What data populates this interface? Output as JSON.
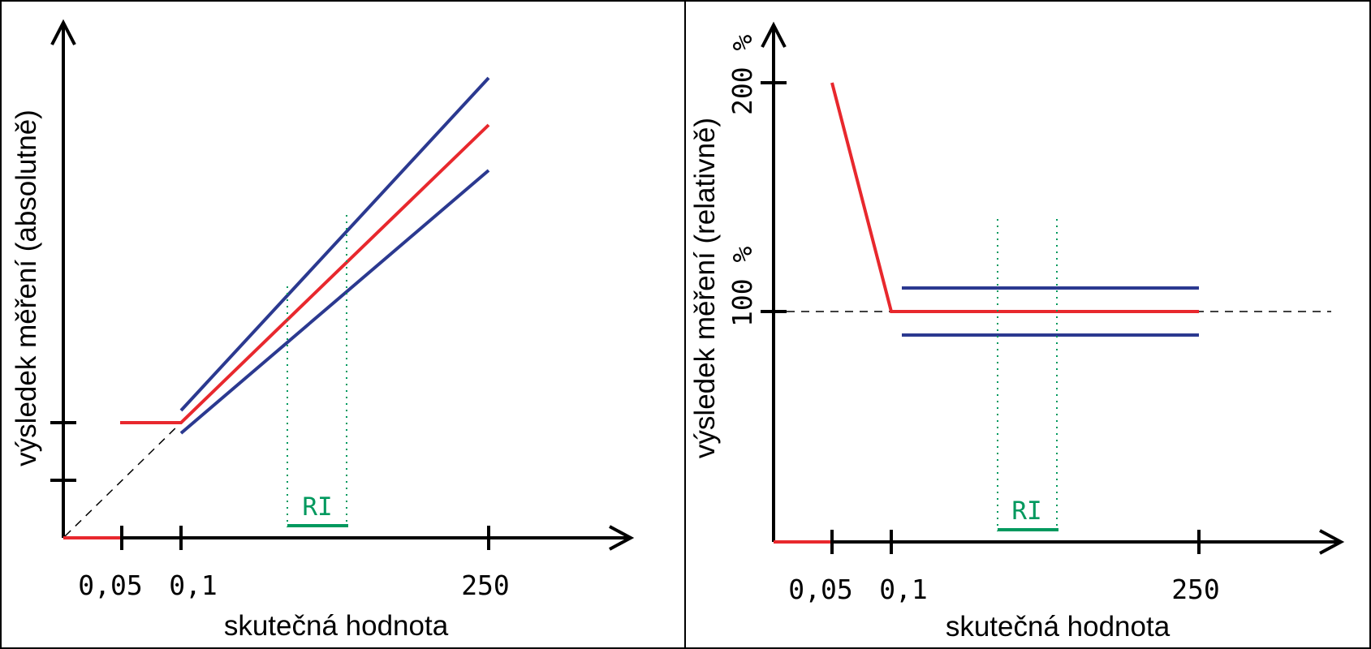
{
  "colors": {
    "measured": "#e8282d",
    "limits": "#2b3990",
    "reference_interval": "#00995e"
  },
  "left_panel": {
    "y_axis_label": "výsledek měření (absolutně)",
    "x_axis_label": "skutečná hodnota",
    "x_ticks": [
      "0,05",
      "0,1",
      "250"
    ],
    "ri_label": "RI"
  },
  "right_panel": {
    "y_axis_label": "výsledek měření (relativně)",
    "x_axis_label": "skutečná hodnota",
    "x_ticks": [
      "0,05",
      "0,1",
      "250"
    ],
    "y_ticks": [
      "100 %",
      "200 %"
    ],
    "ri_label": "RI"
  }
}
